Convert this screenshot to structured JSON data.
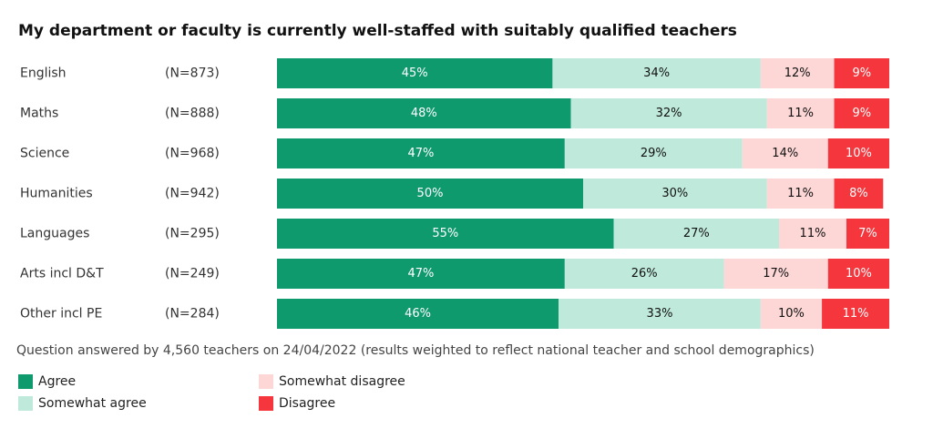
{
  "chart_data": {
    "type": "stacked-bar-horizontal",
    "title": "My department or faculty is currently well-staffed with suitably qualified teachers",
    "categories": [
      "English",
      "Maths",
      "Science",
      "Humanities",
      "Languages",
      "Arts incl D&T",
      "Other incl PE"
    ],
    "n_labels": [
      "(N=873)",
      "(N=888)",
      "(N=968)",
      "(N=942)",
      "(N=295)",
      "(N=249)",
      "(N=284)"
    ],
    "xlim": [
      0,
      100
    ],
    "series": [
      {
        "name": "Agree",
        "color": "#0f9a6e",
        "label_color": "#ffffff",
        "values": [
          45,
          48,
          47,
          50,
          55,
          47,
          46
        ],
        "value_labels": [
          "45%",
          "48%",
          "47%",
          "50%",
          "55%",
          "47%",
          "46%"
        ]
      },
      {
        "name": "Somewhat agree",
        "color": "#bfeadb",
        "label_color": "#111111",
        "values": [
          34,
          32,
          29,
          30,
          27,
          26,
          33
        ],
        "value_labels": [
          "34%",
          "32%",
          "29%",
          "30%",
          "27%",
          "26%",
          "33%"
        ]
      },
      {
        "name": "Somewhat disagree",
        "color": "#fdd6d6",
        "label_color": "#111111",
        "values": [
          12,
          11,
          14,
          11,
          11,
          17,
          10
        ],
        "value_labels": [
          "12%",
          "11%",
          "14%",
          "11%",
          "11%",
          "17%",
          "10%"
        ]
      },
      {
        "name": "Disagree",
        "color": "#f5363c",
        "label_color": "#ffffff",
        "values": [
          9,
          9,
          10,
          8,
          7,
          10,
          11
        ],
        "value_labels": [
          "9%",
          "9%",
          "10%",
          "8%",
          "7%",
          "10%",
          "11%"
        ]
      }
    ],
    "footnote": "Question answered by 4,560 teachers on 24/04/2022 (results weighted to reflect national teacher and school demographics)"
  }
}
